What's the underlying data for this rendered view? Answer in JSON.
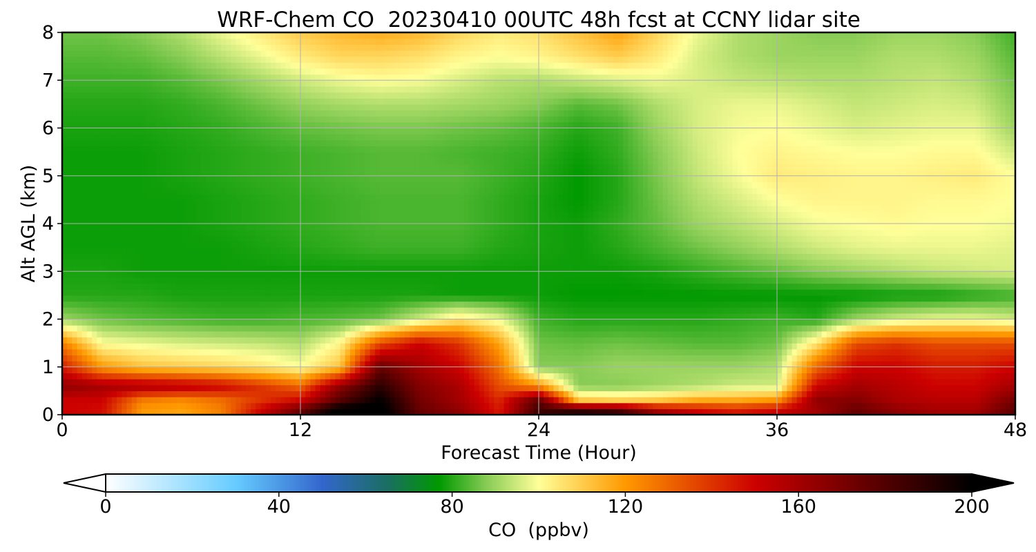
{
  "chart_data": {
    "type": "heatmap",
    "title": "WRF-Chem CO  20230410 00UTC 48h fcst at CCNY lidar site",
    "xlabel": "Forecast Time (Hour)",
    "ylabel": "Alt AGL (km)",
    "xlim": [
      0,
      48
    ],
    "ylim": [
      0,
      8
    ],
    "x_ticks": [
      "0",
      "12",
      "24",
      "36",
      "48"
    ],
    "y_ticks": [
      "0",
      "1",
      "2",
      "3",
      "4",
      "5",
      "6",
      "7",
      "8"
    ],
    "grid": true,
    "colorbar": {
      "label": "CO  (ppbv)",
      "range": [
        0,
        200
      ],
      "ticks": [
        "0",
        "40",
        "80",
        "120",
        "160",
        "200"
      ],
      "extend": "both",
      "stops": [
        {
          "value": 0,
          "color": "#ffffff"
        },
        {
          "value": 30,
          "color": "#66ccff"
        },
        {
          "value": 50,
          "color": "#3366cc"
        },
        {
          "value": 65,
          "color": "#1a6e62"
        },
        {
          "value": 77,
          "color": "#009900"
        },
        {
          "value": 88,
          "color": "#88cc55"
        },
        {
          "value": 100,
          "color": "#ffff99"
        },
        {
          "value": 120,
          "color": "#ff9900"
        },
        {
          "value": 150,
          "color": "#cc0000"
        },
        {
          "value": 175,
          "color": "#660000"
        },
        {
          "value": 200,
          "color": "#000000"
        }
      ]
    },
    "x_hours": [
      0,
      2,
      4,
      6,
      8,
      10,
      12,
      14,
      16,
      18,
      20,
      22,
      24,
      26,
      28,
      30,
      32,
      34,
      36,
      38,
      40,
      42,
      44,
      46,
      48
    ],
    "z_levels_km": [
      0.1,
      0.3,
      0.6,
      1.0,
      1.5,
      2.0,
      2.5,
      3.0,
      3.5,
      4.0,
      4.5,
      5.0,
      5.5,
      6.0,
      6.5,
      7.0,
      7.5,
      8.0
    ],
    "co_ppbv": [
      [
        150,
        148,
        120,
        118,
        125,
        150,
        175,
        205,
        205,
        175,
        165,
        145,
        185,
        190,
        185,
        160,
        150,
        145,
        150,
        160,
        175,
        165,
        160,
        160,
        178
      ],
      [
        150,
        150,
        125,
        122,
        128,
        140,
        150,
        180,
        200,
        172,
        160,
        142,
        178,
        112,
        110,
        112,
        118,
        118,
        122,
        165,
        168,
        158,
        155,
        155,
        172
      ],
      [
        165,
        160,
        158,
        155,
        150,
        140,
        130,
        165,
        190,
        168,
        158,
        135,
        122,
        88,
        88,
        90,
        92,
        95,
        95,
        150,
        160,
        155,
        150,
        150,
        160
      ],
      [
        145,
        120,
        112,
        110,
        108,
        105,
        100,
        112,
        175,
        160,
        150,
        128,
        88,
        88,
        90,
        90,
        90,
        90,
        92,
        130,
        150,
        150,
        145,
        145,
        150
      ],
      [
        125,
        100,
        98,
        96,
        95,
        94,
        92,
        102,
        135,
        150,
        140,
        118,
        86,
        85,
        86,
        85,
        84,
        84,
        86,
        105,
        135,
        140,
        135,
        135,
        135
      ],
      [
        90,
        86,
        84,
        83,
        82,
        82,
        83,
        84,
        86,
        95,
        105,
        98,
        82,
        80,
        80,
        80,
        80,
        81,
        82,
        80,
        90,
        95,
        98,
        98,
        95
      ],
      [
        80,
        80,
        80,
        79,
        79,
        79,
        79,
        79,
        79,
        79,
        78,
        78,
        78,
        77,
        77,
        77,
        77,
        77,
        77,
        77,
        77,
        78,
        78,
        80,
        82
      ],
      [
        79,
        79,
        78,
        78,
        78,
        78,
        78,
        78,
        78,
        78,
        78,
        78,
        78,
        78,
        78,
        79,
        81,
        83,
        85,
        88,
        90,
        92,
        94,
        95,
        96
      ],
      [
        78,
        78,
        78,
        78,
        78,
        79,
        80,
        81,
        82,
        82,
        82,
        80,
        79,
        78,
        80,
        83,
        86,
        89,
        92,
        95,
        97,
        98,
        98,
        98,
        97
      ],
      [
        78,
        78,
        78,
        78,
        79,
        80,
        81,
        82,
        83,
        83,
        83,
        81,
        79,
        78,
        81,
        85,
        90,
        93,
        96,
        99,
        100,
        101,
        100,
        100,
        99
      ],
      [
        78,
        78,
        78,
        78,
        79,
        80,
        81,
        82,
        83,
        83,
        83,
        81,
        79,
        77,
        80,
        86,
        92,
        96,
        100,
        102,
        102,
        102,
        101,
        101,
        100
      ],
      [
        78,
        78,
        78,
        79,
        80,
        81,
        82,
        83,
        84,
        84,
        84,
        82,
        80,
        77,
        80,
        87,
        94,
        99,
        104,
        103,
        102,
        102,
        103,
        104,
        100
      ],
      [
        78,
        78,
        78,
        79,
        80,
        81,
        82,
        83,
        84,
        84,
        83,
        82,
        81,
        78,
        81,
        88,
        95,
        100,
        102,
        101,
        100,
        100,
        101,
        101,
        95
      ],
      [
        79,
        79,
        79,
        80,
        81,
        83,
        85,
        86,
        87,
        87,
        86,
        85,
        83,
        80,
        82,
        90,
        96,
        99,
        100,
        98,
        96,
        97,
        98,
        98,
        90
      ],
      [
        80,
        80,
        80,
        81,
        83,
        86,
        89,
        91,
        92,
        92,
        91,
        90,
        88,
        84,
        86,
        92,
        96,
        98,
        98,
        96,
        94,
        95,
        96,
        95,
        88
      ],
      [
        82,
        82,
        82,
        84,
        87,
        91,
        95,
        98,
        100,
        99,
        96,
        93,
        92,
        94,
        96,
        98,
        96,
        94,
        93,
        92,
        92,
        93,
        94,
        92,
        86
      ],
      [
        84,
        84,
        85,
        88,
        93,
        98,
        104,
        108,
        108,
        106,
        102,
        100,
        102,
        106,
        110,
        104,
        96,
        92,
        90,
        90,
        90,
        92,
        92,
        90,
        84
      ],
      [
        86,
        86,
        88,
        92,
        98,
        104,
        110,
        114,
        116,
        114,
        108,
        104,
        106,
        112,
        118,
        108,
        98,
        92,
        90,
        88,
        88,
        90,
        90,
        88,
        82
      ]
    ]
  }
}
